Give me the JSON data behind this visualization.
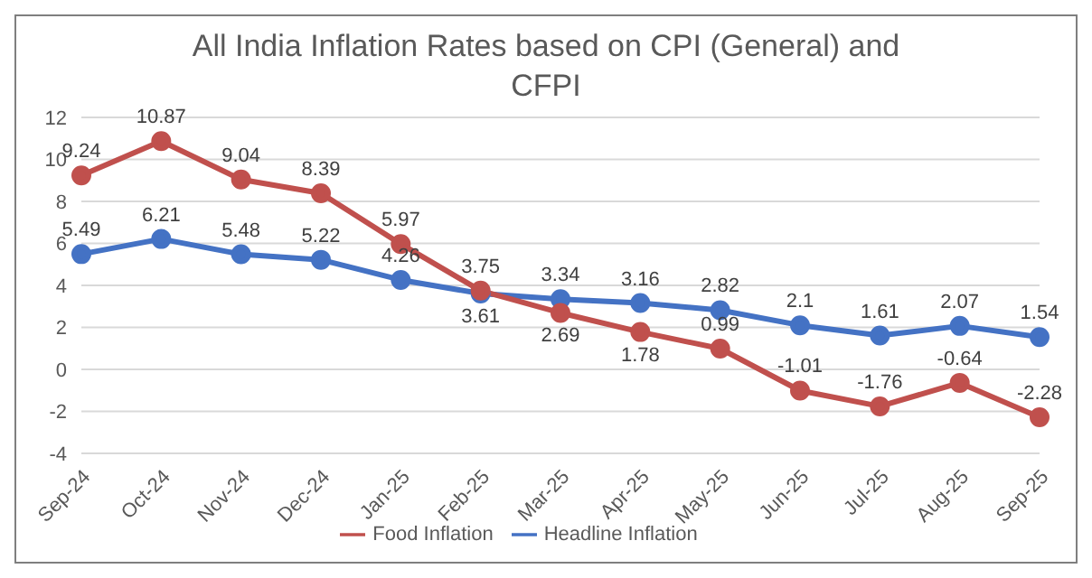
{
  "chart_data": {
    "type": "line",
    "title": "All India Inflation Rates based on CPI (General) and CFPI",
    "categories": [
      "Sep-24",
      "Oct-24",
      "Nov-24",
      "Dec-24",
      "Jan-25",
      "Feb-25",
      "Mar-25",
      "Apr-25",
      "May-25",
      "Jun-25",
      "Jul-25",
      "Aug-25",
      "Sep-25"
    ],
    "series": [
      {
        "name": "Headline Inflation",
        "color": "#4472c4",
        "values": [
          5.49,
          6.21,
          5.48,
          5.22,
          4.26,
          3.61,
          3.34,
          3.16,
          2.82,
          2.1,
          1.61,
          2.07,
          1.54
        ]
      },
      {
        "name": "Food Inflation",
        "color": "#c0504d",
        "values": [
          9.24,
          10.87,
          9.04,
          8.39,
          5.97,
          3.75,
          2.69,
          1.78,
          0.99,
          -1.01,
          -1.76,
          -0.64,
          -2.28
        ]
      }
    ],
    "ylim": [
      -4,
      12
    ],
    "yticks": [
      -4,
      -2,
      0,
      2,
      4,
      6,
      8,
      10,
      12
    ],
    "grid": "y",
    "legend": "bottom",
    "marker": "circle",
    "line_style": "solid",
    "data_labels": true
  }
}
